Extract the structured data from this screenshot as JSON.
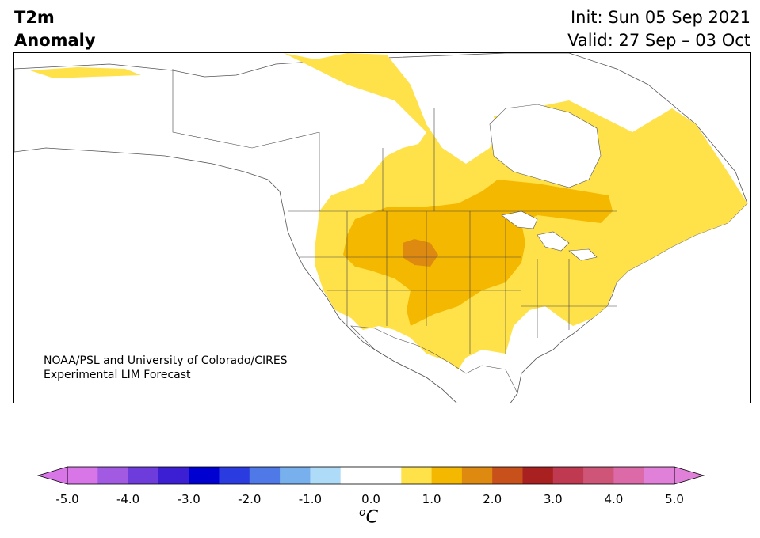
{
  "header": {
    "variable_line1": "T2m",
    "variable_line2": "Anomaly",
    "init": "Init: Sun 05 Sep 2021",
    "valid": "Valid: 27 Sep – 03 Oct"
  },
  "map": {
    "credit_line1": "NOAA/PSL and University of Colorado/CIRES",
    "credit_line2": "Experimental LIM Forecast",
    "anomaly_colors": {
      "0.5_to_1.0": "#FFE14A",
      "1.0_to_1.5": "#F4B800",
      "1.5_to_2.0": "#DE8A10"
    }
  },
  "colorbar": {
    "ticks": [
      "-5.0",
      "-4.0",
      "-3.0",
      "-2.0",
      "-1.0",
      "0.0",
      "1.0",
      "2.0",
      "3.0",
      "4.0",
      "5.0"
    ],
    "unit_sup": "o",
    "unit_base": "C",
    "colors": [
      "#D876E8",
      "#A35AE2",
      "#6E3CDB",
      "#3C1FD2",
      "#0000D0",
      "#2A3CE0",
      "#4E79E6",
      "#78B0EE",
      "#AEDCF8",
      "#FFFFFF",
      "#FFFFFF",
      "#FFE14A",
      "#F4B800",
      "#DE8A10",
      "#C8501A",
      "#A82020",
      "#BF3A50",
      "#CE5578",
      "#DC6AA8",
      "#E080D8"
    ],
    "under_color": "#D876E8",
    "over_color": "#E080D8"
  }
}
